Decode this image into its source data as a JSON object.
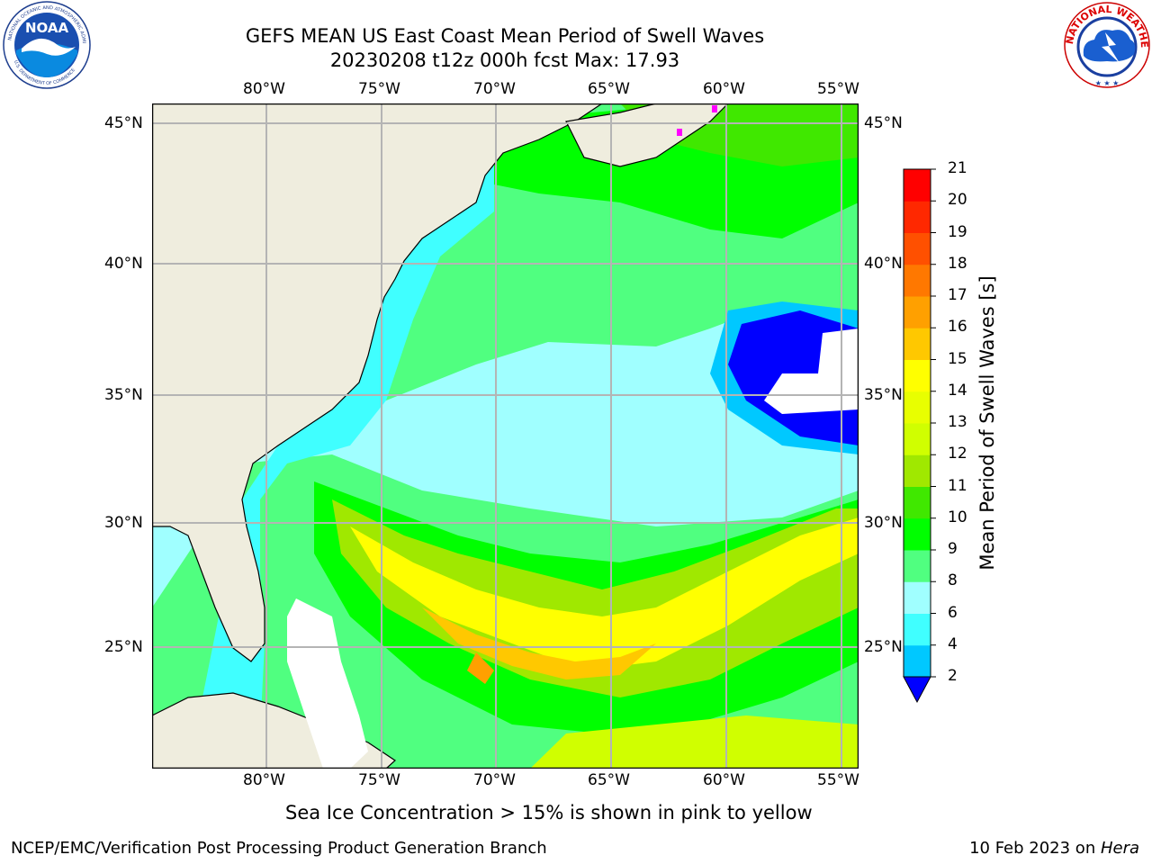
{
  "header": {
    "title_line1": "GEFS MEAN US East Coast Mean Period of Swell Waves",
    "title_line2": "20230208 t12z 000h fcst   Max: 17.93"
  },
  "logos": {
    "left_name": "noaa-logo",
    "left_text": "NOAA",
    "right_name": "nws-logo",
    "right_text": "NATIONAL WEATHER SERVICE"
  },
  "map": {
    "lon_labels": [
      "80°W",
      "75°W",
      "70°W",
      "65°W",
      "60°W",
      "55°W"
    ],
    "lat_labels": [
      "45°N",
      "40°N",
      "35°N",
      "30°N",
      "25°N"
    ],
    "colors": {
      "land": "#efedde",
      "grid": "#b4b4b4",
      "coast": "#000000",
      "sea_ice": "#ff00ff"
    }
  },
  "colorbar": {
    "label": "Mean Period of Swell Waves [s]",
    "ticks": [
      "2",
      "4",
      "6",
      "8",
      "9",
      "10",
      "11",
      "12",
      "13",
      "14",
      "15",
      "16",
      "17",
      "18",
      "19",
      "20",
      "21"
    ],
    "colors": [
      "#0050ff",
      "#00c8ff",
      "#40ffff",
      "#a0ffff",
      "#50ff80",
      "#00ff00",
      "#40e800",
      "#a0e800",
      "#d0ff00",
      "#e8ff00",
      "#ffff00",
      "#ffc800",
      "#ffa000",
      "#ff7800",
      "#ff5000",
      "#ff2800",
      "#ff0000"
    ],
    "extend_low_color": "#0000ff"
  },
  "notes": {
    "sea_ice": "Sea Ice Concentration > 15% is shown in pink to yellow"
  },
  "footer": {
    "left": "NCEP/EMC/Verification Post Processing Product Generation Branch",
    "right_date": "10 Feb 2023 on ",
    "right_host": "Hera"
  }
}
